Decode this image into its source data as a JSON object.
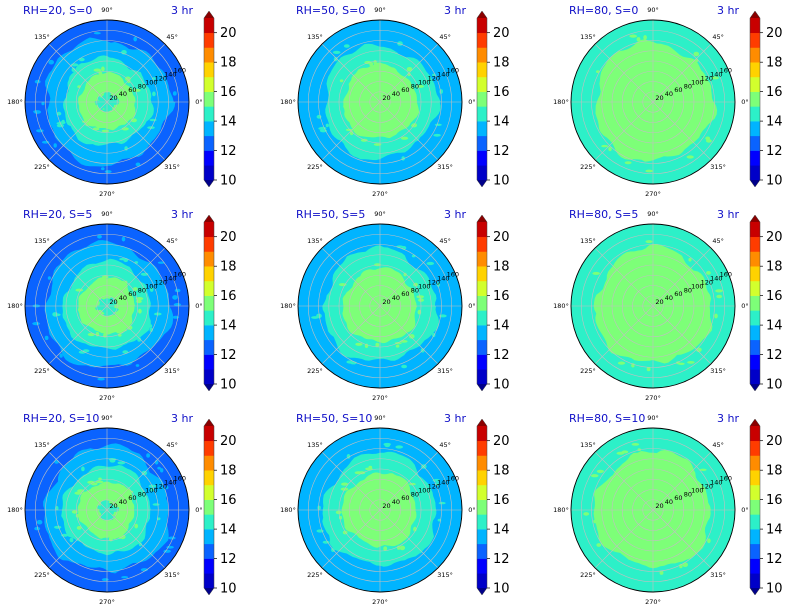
{
  "figure": {
    "colormap": "jet"
  },
  "chart_data": [
    {
      "type": "polar-contour",
      "title_left": "RH=20, S=0",
      "title_right": "3 hr",
      "rh": 20,
      "s": 0,
      "zones": [
        {
          "value": 12,
          "radius": 150,
          "color": "#0a63ff"
        },
        {
          "value": 13,
          "radius": 122,
          "color": "#00b4ff"
        },
        {
          "value": 14,
          "radius": 86,
          "color": "#2cf0c8"
        },
        {
          "value": 15,
          "radius": 55,
          "color": "#7dff78"
        },
        {
          "value": 14,
          "radius": 15,
          "color": "#2cf0c8"
        }
      ]
    },
    {
      "type": "polar-contour",
      "title_left": "RH=50, S=0",
      "title_right": "3 hr",
      "rh": 50,
      "s": 0,
      "zones": [
        {
          "value": 13,
          "radius": 150,
          "color": "#00b4ff"
        },
        {
          "value": 14,
          "radius": 110,
          "color": "#2cf0c8"
        },
        {
          "value": 15,
          "radius": 72,
          "color": "#7dff78"
        }
      ]
    },
    {
      "type": "polar-contour",
      "title_left": "RH=80, S=0",
      "title_right": "3 hr",
      "rh": 80,
      "s": 0,
      "zones": [
        {
          "value": 14,
          "radius": 150,
          "color": "#2cf0c8"
        },
        {
          "value": 15,
          "radius": 115,
          "color": "#7dff78"
        }
      ]
    },
    {
      "type": "polar-contour",
      "title_left": "RH=20, S=5",
      "title_right": "3 hr",
      "rh": 20,
      "s": 5,
      "zones": [
        {
          "value": 12,
          "radius": 150,
          "color": "#0a63ff"
        },
        {
          "value": 13,
          "radius": 122,
          "color": "#00b4ff"
        },
        {
          "value": 14,
          "radius": 86,
          "color": "#2cf0c8"
        },
        {
          "value": 15,
          "radius": 55,
          "color": "#7dff78"
        },
        {
          "value": 14,
          "radius": 15,
          "color": "#2cf0c8"
        }
      ]
    },
    {
      "type": "polar-contour",
      "title_left": "RH=50, S=5",
      "title_right": "3 hr",
      "rh": 50,
      "s": 5,
      "zones": [
        {
          "value": 13,
          "radius": 150,
          "color": "#00b4ff"
        },
        {
          "value": 14,
          "radius": 110,
          "color": "#2cf0c8"
        },
        {
          "value": 15,
          "radius": 72,
          "color": "#7dff78"
        }
      ]
    },
    {
      "type": "polar-contour",
      "title_left": "RH=80, S=5",
      "title_right": "3 hr",
      "rh": 80,
      "s": 5,
      "zones": [
        {
          "value": 14,
          "radius": 150,
          "color": "#2cf0c8"
        },
        {
          "value": 15,
          "radius": 113,
          "color": "#7dff78"
        }
      ]
    },
    {
      "type": "polar-contour",
      "title_left": "RH=20, S=10",
      "title_right": "3 hr",
      "rh": 20,
      "s": 10,
      "zones": [
        {
          "value": 12,
          "radius": 150,
          "color": "#0a63ff"
        },
        {
          "value": 13,
          "radius": 122,
          "color": "#00b4ff"
        },
        {
          "value": 14,
          "radius": 86,
          "color": "#2cf0c8"
        },
        {
          "value": 15,
          "radius": 55,
          "color": "#7dff78"
        },
        {
          "value": 14,
          "radius": 15,
          "color": "#2cf0c8"
        }
      ]
    },
    {
      "type": "polar-contour",
      "title_left": "RH=50, S=10",
      "title_right": "3 hr",
      "rh": 50,
      "s": 10,
      "zones": [
        {
          "value": 13,
          "radius": 150,
          "color": "#00b4ff"
        },
        {
          "value": 14,
          "radius": 110,
          "color": "#2cf0c8"
        },
        {
          "value": 15,
          "radius": 72,
          "color": "#7dff78"
        }
      ]
    },
    {
      "type": "polar-contour",
      "title_left": "RH=80, S=10",
      "title_right": "3 hr",
      "rh": 80,
      "s": 10,
      "zones": [
        {
          "value": 14,
          "radius": 150,
          "color": "#2cf0c8"
        },
        {
          "value": 15,
          "radius": 113,
          "color": "#7dff78"
        }
      ]
    }
  ],
  "polar_axes": {
    "angle_ticks": [
      0,
      45,
      90,
      135,
      180,
      225,
      270,
      315
    ],
    "angle_labels": [
      "0°",
      "45°",
      "90°",
      "135°",
      "180°",
      "225°",
      "270°",
      "315°"
    ],
    "radial_ticks": [
      20,
      40,
      60,
      80,
      100,
      120,
      140,
      160
    ],
    "radial_labels": [
      "20",
      "40",
      "60",
      "80",
      "100",
      "120",
      "140",
      "160"
    ],
    "rmax": 160,
    "grid": true,
    "grid_color": "#c0c0c0"
  },
  "colorbar": {
    "min": 10,
    "max": 21,
    "extend": "both",
    "tick_values": [
      10,
      12,
      14,
      16,
      18,
      20
    ],
    "tick_labels": [
      "10",
      "12",
      "14",
      "16",
      "18",
      "20"
    ],
    "levels": [
      10,
      11,
      12,
      13,
      14,
      15,
      16,
      17,
      18,
      19,
      20,
      21
    ],
    "colors": [
      "#0000c8",
      "#0000ff",
      "#0a63ff",
      "#00b4ff",
      "#2cf0c8",
      "#7dff78",
      "#d2ff2d",
      "#ffd200",
      "#ff8c00",
      "#ff3c00",
      "#c80000"
    ],
    "under_color": "#00008a",
    "over_color": "#8a0000"
  }
}
